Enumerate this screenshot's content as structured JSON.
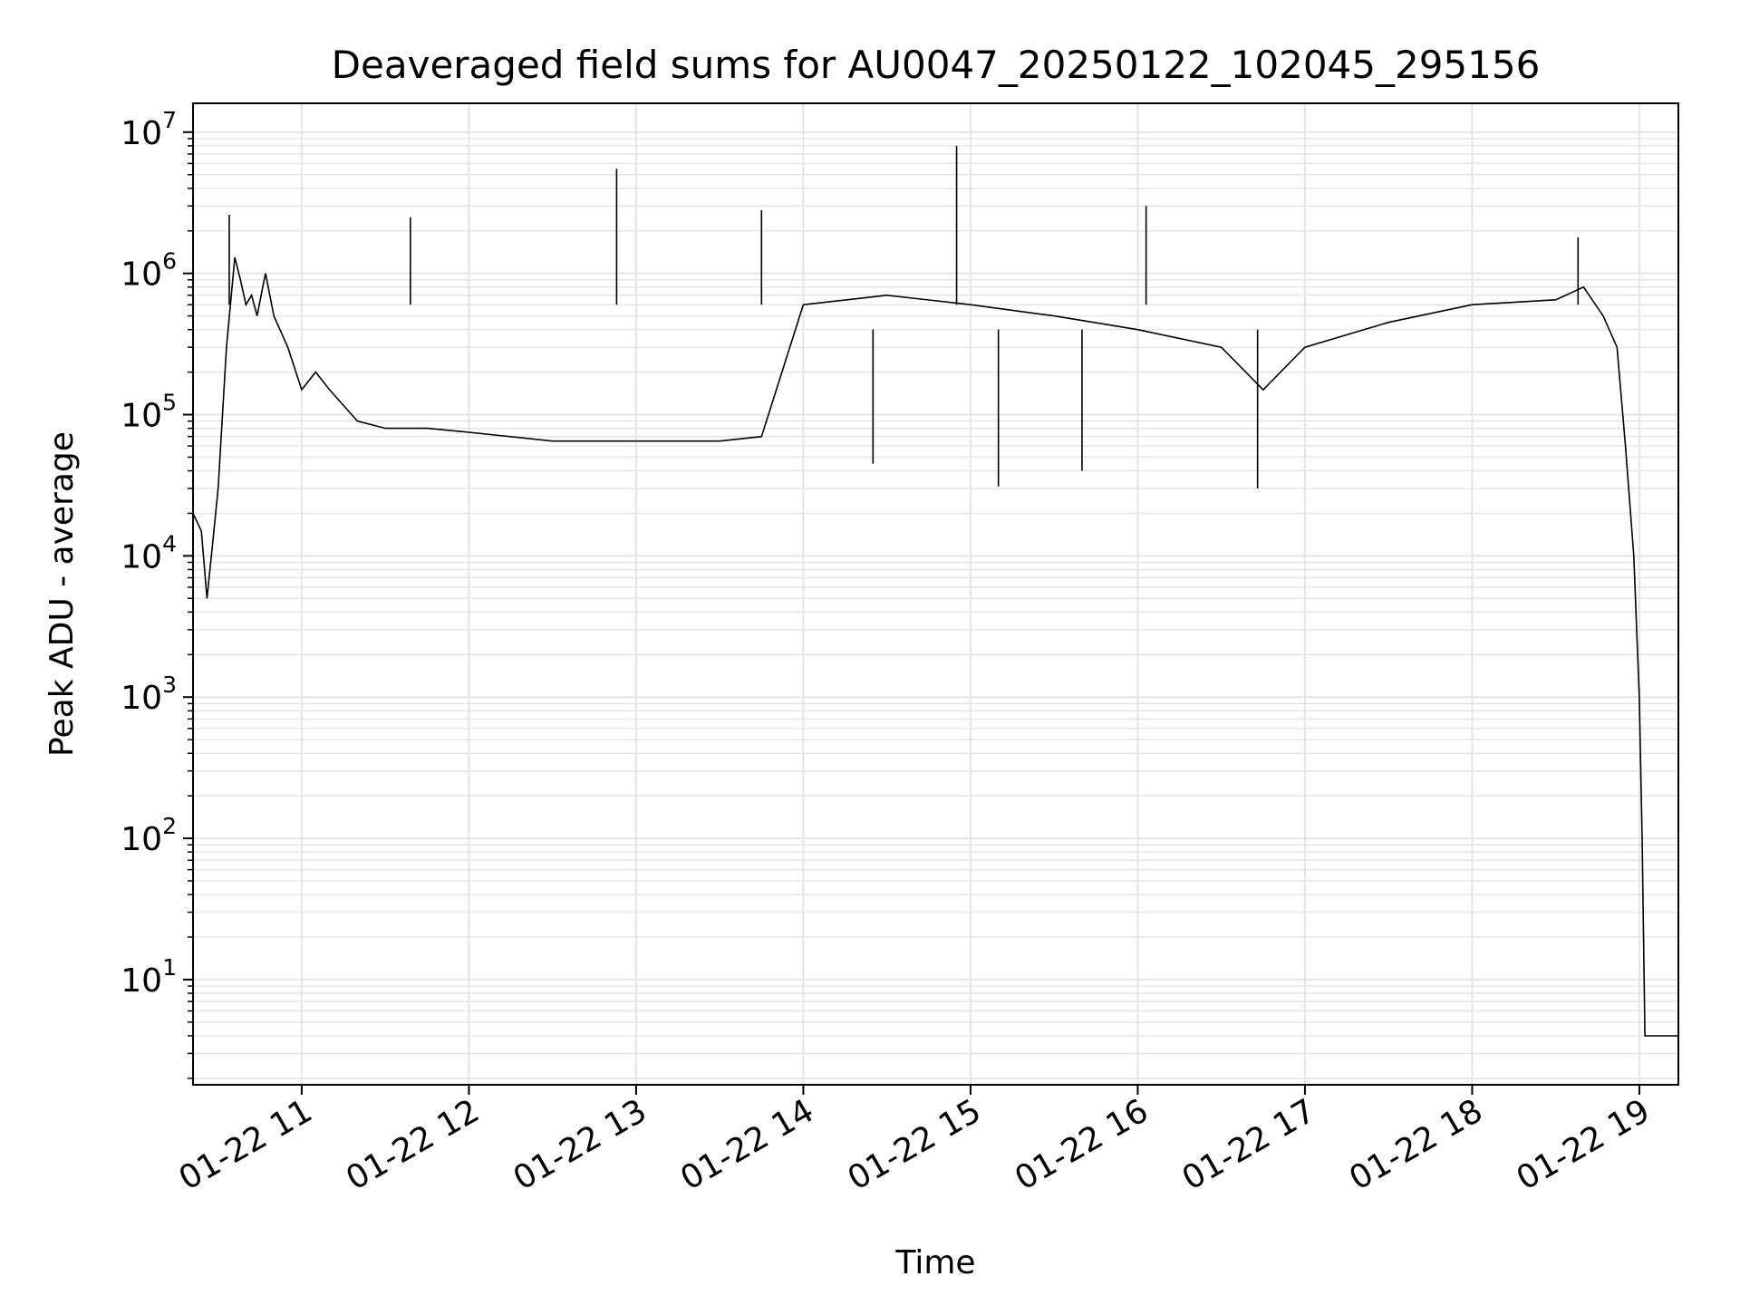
{
  "chart_data": {
    "type": "line",
    "title": "Deaveraged field sums for AU0047_20250122_102045_295156",
    "xlabel": "Time",
    "ylabel": "Peak ADU - average",
    "yscale": "log",
    "ylim": [
      1.8,
      16000000
    ],
    "xlim": [
      "2025-01-22 10:21",
      "2025-01-22 19:14"
    ],
    "grid": true,
    "line_color": "#000000",
    "grid_color": "#e5e5e5",
    "x_ticks": [
      {
        "value": "2025-01-22 11:00",
        "label": "01-22 11"
      },
      {
        "value": "2025-01-22 12:00",
        "label": "01-22 12"
      },
      {
        "value": "2025-01-22 13:00",
        "label": "01-22 13"
      },
      {
        "value": "2025-01-22 14:00",
        "label": "01-22 14"
      },
      {
        "value": "2025-01-22 15:00",
        "label": "01-22 15"
      },
      {
        "value": "2025-01-22 16:00",
        "label": "01-22 16"
      },
      {
        "value": "2025-01-22 17:00",
        "label": "01-22 17"
      },
      {
        "value": "2025-01-22 18:00",
        "label": "01-22 18"
      },
      {
        "value": "2025-01-22 19:00",
        "label": "01-22 19"
      }
    ],
    "y_ticks": [
      {
        "value": 10,
        "base": "10",
        "exp": "1"
      },
      {
        "value": 100,
        "base": "10",
        "exp": "2"
      },
      {
        "value": 1000,
        "base": "10",
        "exp": "3"
      },
      {
        "value": 10000,
        "base": "10",
        "exp": "4"
      },
      {
        "value": 100000,
        "base": "10",
        "exp": "5"
      },
      {
        "value": 1000000,
        "base": "10",
        "exp": "6"
      },
      {
        "value": 10000000,
        "base": "10",
        "exp": "7"
      }
    ],
    "series": [
      {
        "x": [
          "2025-01-22 10:21",
          "2025-01-22 10:24",
          "2025-01-22 10:26",
          "2025-01-22 10:28",
          "2025-01-22 10:30",
          "2025-01-22 10:33",
          "2025-01-22 10:36",
          "2025-01-22 10:38",
          "2025-01-22 10:40",
          "2025-01-22 10:42",
          "2025-01-22 10:44",
          "2025-01-22 10:46",
          "2025-01-22 10:47",
          "2025-01-22 10:50",
          "2025-01-22 10:55",
          "2025-01-22 11:00",
          "2025-01-22 11:05",
          "2025-01-22 11:10",
          "2025-01-22 11:20",
          "2025-01-22 11:30",
          "2025-01-22 11:45",
          "2025-01-22 12:00",
          "2025-01-22 12:30",
          "2025-01-22 13:00",
          "2025-01-22 13:30",
          "2025-01-22 13:45",
          "2025-01-22 14:00",
          "2025-01-22 14:30",
          "2025-01-22 15:00",
          "2025-01-22 15:30",
          "2025-01-22 16:00",
          "2025-01-22 16:30",
          "2025-01-22 16:45",
          "2025-01-22 17:00",
          "2025-01-22 17:30",
          "2025-01-22 18:00",
          "2025-01-22 18:30",
          "2025-01-22 18:40",
          "2025-01-22 18:47",
          "2025-01-22 18:52",
          "2025-01-22 18:55",
          "2025-01-22 18:58",
          "2025-01-22 19:00",
          "2025-01-22 19:01",
          "2025-01-22 19:02",
          "2025-01-22 19:05",
          "2025-01-22 19:14"
        ],
        "y": [
          20000,
          15000,
          5000,
          12000,
          30000,
          300000,
          1300000,
          900000,
          600000,
          700000,
          500000,
          800000,
          1000000,
          500000,
          300000,
          150000,
          200000,
          150000,
          90000,
          80000,
          80000,
          75000,
          65000,
          65000,
          65000,
          70000,
          600000,
          700000,
          600000,
          500000,
          400000,
          300000,
          150000,
          300000,
          450000,
          600000,
          650000,
          800000,
          500000,
          300000,
          60000,
          10000,
          1000,
          100,
          4,
          4,
          4
        ]
      }
    ],
    "spikes": [
      {
        "x": "2025-01-22 10:34",
        "y": 2600000
      },
      {
        "x": "2025-01-22 11:39",
        "y": 2500000
      },
      {
        "x": "2025-01-22 12:53",
        "y": 5500000
      },
      {
        "x": "2025-01-22 13:45",
        "y": 2800000
      },
      {
        "x": "2025-01-22 14:55",
        "y": 8000000
      },
      {
        "x": "2025-01-22 16:03",
        "y": 3000000
      },
      {
        "x": "2025-01-22 18:38",
        "y": 1800000
      }
    ],
    "dips": [
      {
        "x": "2025-01-22 15:10",
        "y": 31000
      },
      {
        "x": "2025-01-22 16:43",
        "y": 30000
      },
      {
        "x": "2025-01-22 14:25",
        "y": 45000
      },
      {
        "x": "2025-01-22 15:40",
        "y": 40000
      }
    ]
  }
}
